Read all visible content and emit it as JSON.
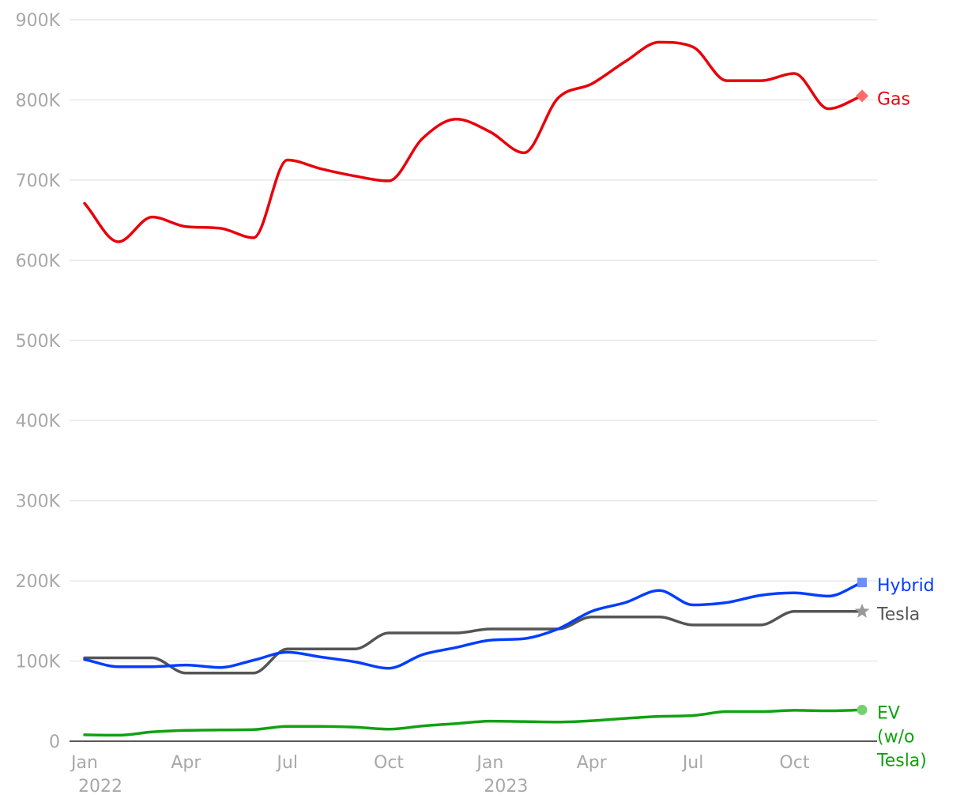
{
  "chart_data": {
    "type": "line",
    "title": "",
    "xlabel": "",
    "ylabel": "",
    "x": [
      "2022-01",
      "2022-02",
      "2022-03",
      "2022-04",
      "2022-05",
      "2022-06",
      "2022-07",
      "2022-08",
      "2022-09",
      "2022-10",
      "2022-11",
      "2022-12",
      "2023-01",
      "2023-02",
      "2023-03",
      "2023-04",
      "2023-05",
      "2023-06",
      "2023-07",
      "2023-08",
      "2023-09",
      "2023-10",
      "2023-11",
      "2023-12"
    ],
    "ylim": [
      0,
      900000
    ],
    "y_ticks": [
      {
        "value": 0,
        "label": "0"
      },
      {
        "value": 100000,
        "label": "100K"
      },
      {
        "value": 200000,
        "label": "200K"
      },
      {
        "value": 300000,
        "label": "300K"
      },
      {
        "value": 400000,
        "label": "400K"
      },
      {
        "value": 500000,
        "label": "500K"
      },
      {
        "value": 600000,
        "label": "600K"
      },
      {
        "value": 700000,
        "label": "700K"
      },
      {
        "value": 800000,
        "label": "800K"
      },
      {
        "value": 900000,
        "label": "900K"
      }
    ],
    "x_ticks": [
      {
        "index": 0,
        "label": "Jan",
        "sublabel": "2022"
      },
      {
        "index": 3,
        "label": "Apr",
        "sublabel": ""
      },
      {
        "index": 6,
        "label": "Jul",
        "sublabel": ""
      },
      {
        "index": 9,
        "label": "Oct",
        "sublabel": ""
      },
      {
        "index": 12,
        "label": "Jan",
        "sublabel": "2023"
      },
      {
        "index": 15,
        "label": "Apr",
        "sublabel": ""
      },
      {
        "index": 18,
        "label": "Jul",
        "sublabel": ""
      },
      {
        "index": 21,
        "label": "Oct",
        "sublabel": ""
      }
    ],
    "grid": true,
    "legend": "direct labels at line ends",
    "series": [
      {
        "name": "Gas",
        "label_lines": [
          "Gas"
        ],
        "color": "#e8000b",
        "marker": "diamond",
        "marker_color": "#ff6b6b",
        "values": [
          671000,
          623000,
          654000,
          642000,
          640000,
          628000,
          725000,
          714000,
          705000,
          699000,
          752000,
          776000,
          760000,
          734000,
          802000,
          820000,
          848000,
          872000,
          866000,
          824000,
          824000,
          833000,
          789000,
          805000
        ]
      },
      {
        "name": "Hybrid",
        "label_lines": [
          "Hybrid"
        ],
        "color": "#023eff",
        "marker": "square",
        "marker_color": "#6a8dff",
        "values": [
          102000,
          93000,
          93000,
          95000,
          92000,
          101000,
          111000,
          105000,
          99000,
          91000,
          108000,
          117000,
          126000,
          128000,
          140000,
          162000,
          173000,
          188000,
          170000,
          173000,
          182000,
          185000,
          181000,
          198000
        ]
      },
      {
        "name": "Tesla",
        "label_lines": [
          "Tesla"
        ],
        "color": "#555555",
        "marker": "star",
        "marker_color": "#999999",
        "values": [
          104000,
          104000,
          104000,
          85000,
          85000,
          85000,
          115000,
          115000,
          115000,
          135000,
          135000,
          135000,
          140000,
          140000,
          140000,
          155000,
          155000,
          155000,
          145000,
          145000,
          145000,
          162000,
          162000,
          162000
        ]
      },
      {
        "name": "EV (w/o Tesla)",
        "label_lines": [
          "EV",
          "(w/o",
          "Tesla)"
        ],
        "color": "#12a112",
        "marker": "circle",
        "marker_color": "#6fd46f",
        "values": [
          8000,
          7500,
          11500,
          13500,
          14000,
          14500,
          18500,
          18500,
          17500,
          15000,
          19000,
          22000,
          25000,
          24500,
          24000,
          25500,
          28500,
          31000,
          32000,
          37000,
          37000,
          38500,
          38000,
          39000
        ]
      }
    ]
  }
}
